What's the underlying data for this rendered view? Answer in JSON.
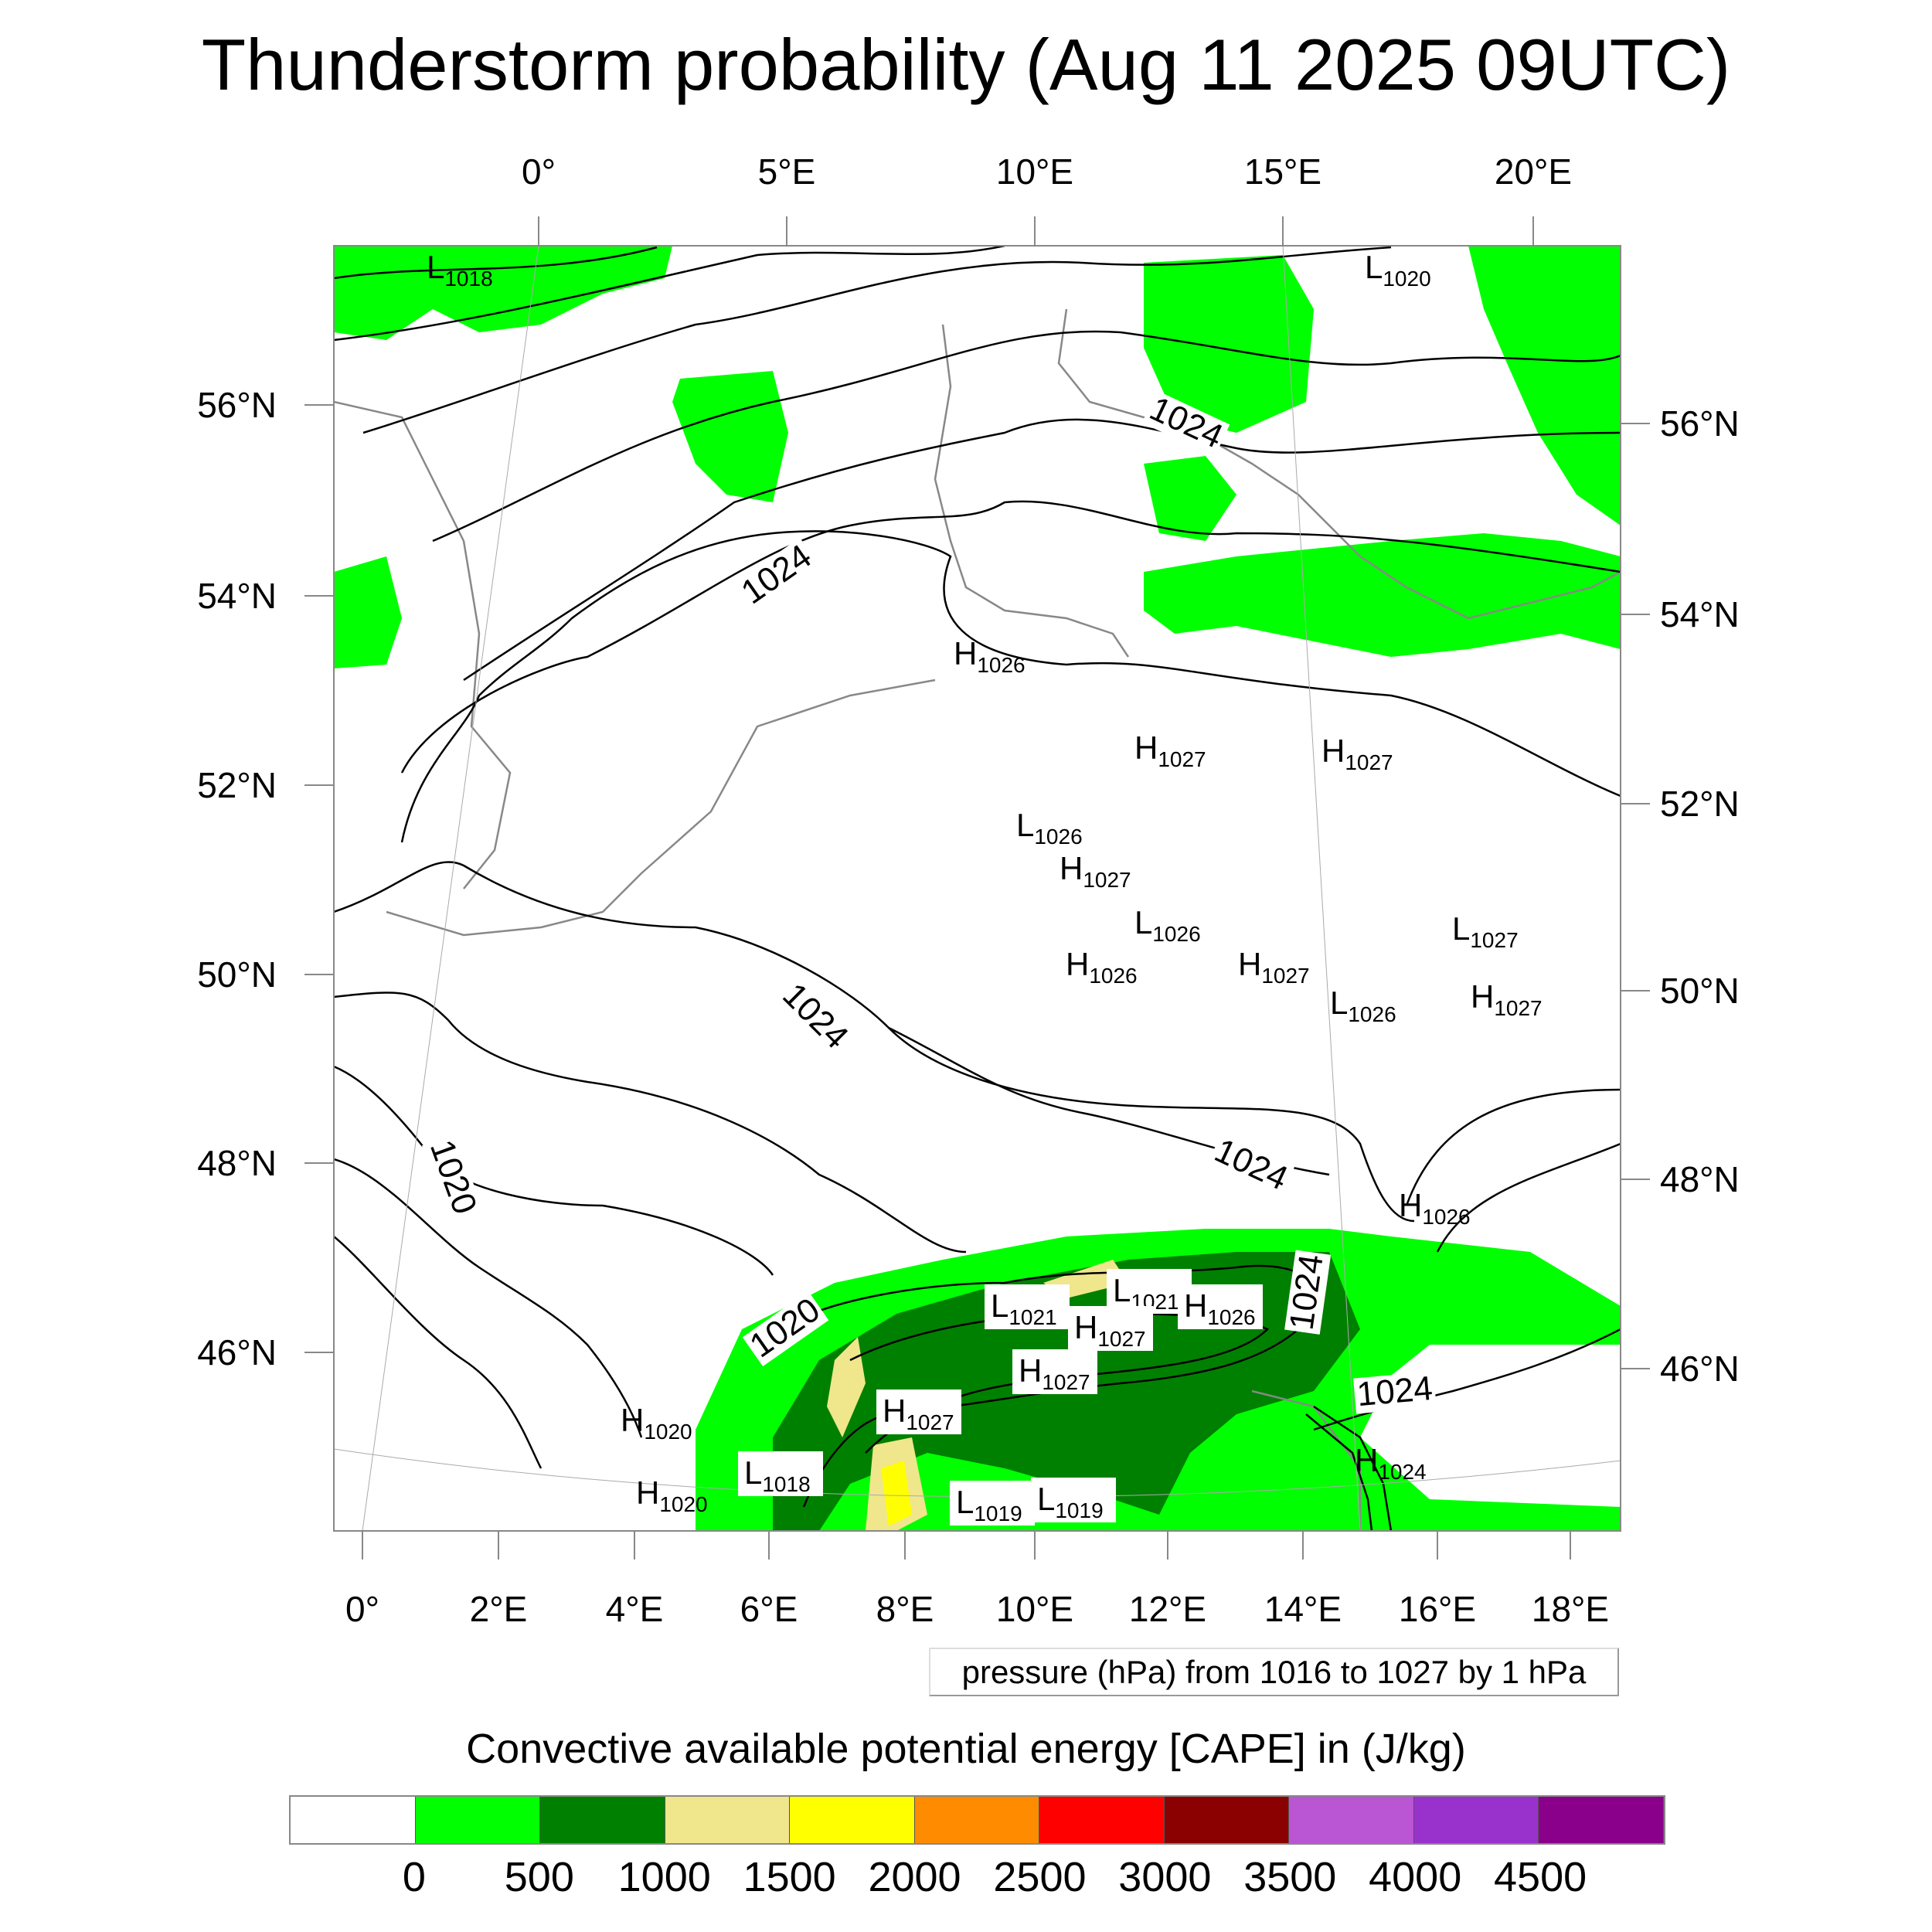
{
  "title": "Thunderstorm probability (Aug 11 2025 09UTC)",
  "map": {
    "top_lon_labels": [
      "0°",
      "5°E",
      "10°E",
      "15°E",
      "20°E"
    ],
    "bottom_lon_labels": [
      "0°",
      "2°E",
      "4°E",
      "6°E",
      "8°E",
      "10°E",
      "12°E",
      "14°E",
      "16°E",
      "18°E"
    ],
    "left_lat_labels": [
      "56°N",
      "54°N",
      "52°N",
      "50°N",
      "48°N",
      "46°N"
    ],
    "right_lat_labels": [
      "56°N",
      "54°N",
      "52°N",
      "50°N",
      "48°N",
      "46°N"
    ],
    "contour_labels": [
      "1024",
      "1024",
      "1024",
      "1020",
      "1024",
      "1024",
      "1020",
      "1024"
    ],
    "centers": [
      {
        "t": "L",
        "v": "1018"
      },
      {
        "t": "L",
        "v": "1020"
      },
      {
        "t": "H",
        "v": "1026"
      },
      {
        "t": "H",
        "v": "1027"
      },
      {
        "t": "H",
        "v": "1027"
      },
      {
        "t": "L",
        "v": "1026"
      },
      {
        "t": "H",
        "v": "1027"
      },
      {
        "t": "L",
        "v": "1026"
      },
      {
        "t": "L",
        "v": "1027"
      },
      {
        "t": "H",
        "v": "1026"
      },
      {
        "t": "H",
        "v": "1027"
      },
      {
        "t": "L",
        "v": "1026"
      },
      {
        "t": "H",
        "v": "1027"
      },
      {
        "t": "H",
        "v": "1026"
      },
      {
        "t": "L",
        "v": "1021"
      },
      {
        "t": "L",
        "v": "1021"
      },
      {
        "t": "H",
        "v": "1026"
      },
      {
        "t": "H",
        "v": "1027"
      },
      {
        "t": "H",
        "v": "1027"
      },
      {
        "t": "H",
        "v": "1027"
      },
      {
        "t": "H",
        "v": "1020"
      },
      {
        "t": "H",
        "v": "1024"
      },
      {
        "t": "L",
        "v": "1018"
      },
      {
        "t": "H",
        "v": "1020"
      },
      {
        "t": "L",
        "v": "1019"
      },
      {
        "t": "L",
        "v": "1019"
      }
    ]
  },
  "pressure_legend": "pressure (hPa) from 1016 to 1027 by 1 hPa",
  "colorbar": {
    "title": "Convective available potential energy [CAPE] in (J/kg)",
    "colors": [
      "#ffffff",
      "#00ff00",
      "#008000",
      "#f0e68c",
      "#ffff00",
      "#ff8c00",
      "#ff0000",
      "#8b0000",
      "#ba55d3",
      "#9932cc",
      "#8b008b"
    ],
    "labels": [
      "0",
      "500",
      "1000",
      "1500",
      "2000",
      "2500",
      "3000",
      "3500",
      "4000",
      "4500"
    ]
  }
}
